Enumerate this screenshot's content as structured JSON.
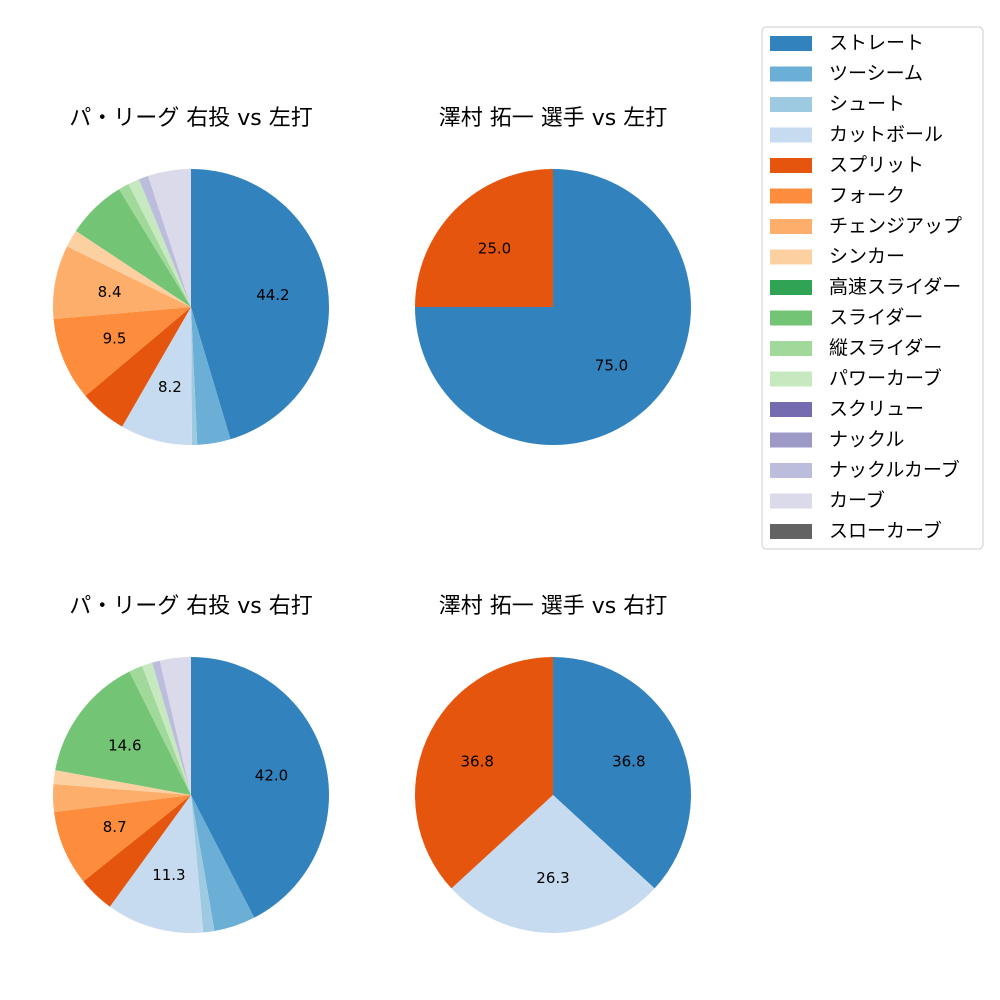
{
  "pitch_types": [
    {
      "name": "ストレート",
      "color": "#3182bd"
    },
    {
      "name": "ツーシーム",
      "color": "#6baed6"
    },
    {
      "name": "シュート",
      "color": "#9ecae1"
    },
    {
      "name": "カットボール",
      "color": "#c6dbef"
    },
    {
      "name": "スプリット",
      "color": "#e6550d"
    },
    {
      "name": "フォーク",
      "color": "#fd8d3c"
    },
    {
      "name": "チェンジアップ",
      "color": "#fdae6b"
    },
    {
      "name": "シンカー",
      "color": "#fdd0a2"
    },
    {
      "name": "高速スライダー",
      "color": "#31a354"
    },
    {
      "name": "スライダー",
      "color": "#74c476"
    },
    {
      "name": "縦スライダー",
      "color": "#a1d99b"
    },
    {
      "name": "パワーカーブ",
      "color": "#c7e9c0"
    },
    {
      "name": "スクリュー",
      "color": "#756bb1"
    },
    {
      "name": "ナックル",
      "color": "#9e9ac8"
    },
    {
      "name": "ナックルカーブ",
      "color": "#bcbddc"
    },
    {
      "name": "カーブ",
      "color": "#dadaeb"
    },
    {
      "name": "スローカーブ",
      "color": "#636363"
    }
  ],
  "chart_data": [
    {
      "type": "pie",
      "title": "パ・リーグ 右投 vs 左打",
      "labels": [
        "ストレート",
        "ツーシーム",
        "シュート",
        "カットボール",
        "スプリット",
        "フォーク",
        "チェンジアップ",
        "シンカー",
        "高速スライダー",
        "スライダー",
        "縦スライダー",
        "パワーカーブ",
        "スクリュー",
        "ナックル",
        "ナックルカーブ",
        "カーブ",
        "スローカーブ"
      ],
      "values": [
        44.2,
        3.8,
        0.6,
        8.2,
        5.4,
        9.5,
        8.4,
        2.0,
        0,
        6.8,
        1.2,
        1.3,
        0,
        0,
        1.1,
        4.9,
        0
      ],
      "data_labels": [
        "44.2",
        "",
        "",
        "8.2",
        "",
        "9.5",
        "8.4",
        "",
        "",
        "",
        "",
        "",
        "",
        "",
        "",
        "",
        ""
      ]
    },
    {
      "type": "pie",
      "title": "澤村 拓一 選手 vs 左打",
      "labels": [
        "ストレート",
        "スプリット"
      ],
      "values": [
        75.0,
        25.0
      ],
      "data_labels": [
        "75.0",
        "25.0"
      ]
    },
    {
      "type": "pie",
      "title": "パ・リーグ 右投 vs 右打",
      "labels": [
        "ストレート",
        "ツーシーム",
        "シュート",
        "カットボール",
        "スプリット",
        "フォーク",
        "チェンジアップ",
        "シンカー",
        "高速スライダー",
        "スライダー",
        "縦スライダー",
        "パワーカーブ",
        "スクリュー",
        "ナックル",
        "ナックルカーブ",
        "カーブ",
        "スローカーブ"
      ],
      "values": [
        42.0,
        4.8,
        1.3,
        11.3,
        4.2,
        8.7,
        3.2,
        1.6,
        0,
        14.6,
        1.6,
        1.2,
        0,
        0,
        0.9,
        3.6,
        0
      ],
      "data_labels": [
        "42.0",
        "",
        "",
        "11.3",
        "",
        "8.7",
        "",
        "",
        "",
        "14.6",
        "",
        "",
        "",
        "",
        "",
        "",
        ""
      ]
    },
    {
      "type": "pie",
      "title": "澤村 拓一 選手 vs 右打",
      "labels": [
        "ストレート",
        "カットボール",
        "スプリット"
      ],
      "values": [
        36.8,
        26.3,
        36.8
      ],
      "data_labels": [
        "36.8",
        "26.3",
        "36.8"
      ]
    }
  ]
}
